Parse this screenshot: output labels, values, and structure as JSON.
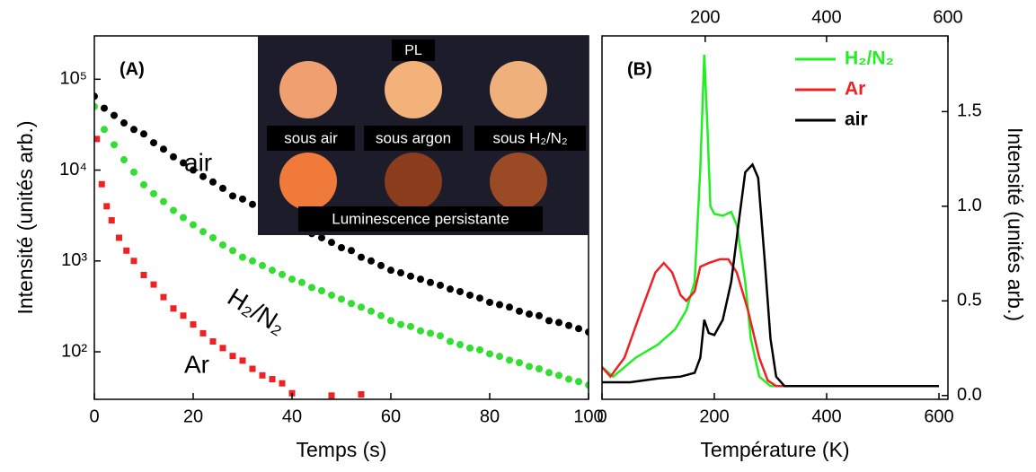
{
  "chart_data": [
    {
      "type": "scatter",
      "panel_label": "(A)",
      "xlabel": "Temps (s)",
      "ylabel": "Intensité (unités arb.)",
      "xlim": [
        0,
        100
      ],
      "xticks": [
        0,
        20,
        40,
        60,
        80,
        100
      ],
      "ylim": [
        30,
        300000
      ],
      "log_y": true,
      "yticks": [
        {
          "value": 100,
          "label": "10²"
        },
        {
          "value": 1000,
          "label": "10³"
        },
        {
          "value": 10000,
          "label": "10⁴"
        },
        {
          "value": 100000,
          "label": "10⁵"
        }
      ],
      "x": [
        0,
        2,
        4,
        6,
        8,
        10,
        12,
        14,
        16,
        18,
        20,
        22,
        24,
        26,
        28,
        30,
        32,
        34,
        36,
        38,
        40,
        42,
        44,
        46,
        48,
        50,
        52,
        54,
        56,
        58,
        60,
        62,
        64,
        66,
        68,
        70,
        72,
        74,
        76,
        78,
        80,
        82,
        84,
        86,
        88,
        90,
        92,
        94,
        96,
        98,
        100
      ],
      "series": [
        {
          "name": "air",
          "color": "#000000",
          "marker": "circle",
          "values": [
            65000,
            48000,
            40000,
            33000,
            28000,
            25000,
            20000,
            17000,
            14000,
            12000,
            10000,
            8500,
            7400,
            6300,
            5200,
            4800,
            4200,
            3600,
            3200,
            2800,
            2500,
            2200,
            2000,
            1800,
            1600,
            1400,
            1300,
            1100,
            1000,
            890,
            790,
            740,
            680,
            630,
            580,
            540,
            490,
            460,
            420,
            390,
            350,
            330,
            310,
            280,
            260,
            250,
            220,
            210,
            195,
            180,
            165
          ]
        },
        {
          "name": "H₂/N₂",
          "color": "#33dd33",
          "marker": "circle",
          "values": [
            50000,
            28000,
            19000,
            13000,
            9500,
            6900,
            5500,
            4500,
            3600,
            3000,
            2500,
            2100,
            1800,
            1500,
            1300,
            1100,
            1000,
            890,
            790,
            710,
            630,
            580,
            510,
            470,
            420,
            380,
            340,
            310,
            280,
            250,
            220,
            200,
            190,
            170,
            160,
            150,
            130,
            120,
            110,
            105,
            95,
            89,
            81,
            76,
            69,
            65,
            59,
            55,
            50,
            47,
            43
          ]
        },
        {
          "name": "Ar",
          "color": "#ee2222",
          "marker": "square",
          "x": [
            0.5,
            1.5,
            2.5,
            3.5,
            5,
            6.5,
            8,
            10,
            12,
            14,
            16,
            18,
            20,
            22,
            24,
            26,
            28,
            30,
            32,
            34,
            36,
            38,
            40,
            48,
            54
          ],
          "values": [
            22000,
            7000,
            4000,
            2800,
            1800,
            1300,
            1000,
            700,
            550,
            400,
            300,
            250,
            200,
            160,
            130,
            110,
            90,
            80,
            65,
            55,
            50,
            45,
            35,
            33,
            34
          ]
        }
      ],
      "inset": {
        "title": "PL",
        "labels": [
          "sous air",
          "sous argon",
          "sous H₂/N₂"
        ],
        "caption": "Luminescence persistante"
      }
    },
    {
      "type": "line",
      "panel_label": "(B)",
      "xlabel": "Température (K)",
      "ylabel": "Intensité (unités arb.)",
      "xlim": [
        0,
        616
      ],
      "xticks": [
        0,
        200,
        400,
        600
      ],
      "x2lim": [
        30,
        600
      ],
      "x2ticks": [
        200,
        400,
        600
      ],
      "ylim": [
        -0.02,
        1.9
      ],
      "yticks": [
        {
          "value": 0,
          "label": "0.0"
        },
        0.5,
        {
          "value": 1,
          "label": "1.0"
        },
        1.5
      ],
      "series": [
        {
          "name": "H₂/N₂",
          "color": "#22ee22",
          "x": [
            0,
            20,
            60,
            100,
            130,
            150,
            165,
            175,
            182,
            188,
            193,
            200,
            215,
            230,
            240,
            255,
            265,
            280,
            300,
            600
          ],
          "values": [
            0.15,
            0.1,
            0.2,
            0.27,
            0.35,
            0.45,
            0.6,
            1.2,
            1.8,
            1.4,
            1.0,
            0.96,
            0.95,
            0.97,
            0.9,
            0.6,
            0.3,
            0.1,
            0.05,
            0.05
          ]
        },
        {
          "name": "Ar",
          "color": "#ee2222",
          "x": [
            0,
            15,
            40,
            70,
            95,
            110,
            125,
            140,
            150,
            165,
            175,
            190,
            210,
            225,
            240,
            260,
            280,
            295,
            310,
            600
          ],
          "values": [
            0.15,
            0.1,
            0.2,
            0.45,
            0.65,
            0.7,
            0.65,
            0.53,
            0.5,
            0.55,
            0.68,
            0.7,
            0.72,
            0.72,
            0.65,
            0.45,
            0.2,
            0.08,
            0.05,
            0.05
          ]
        },
        {
          "name": "air",
          "color": "#000000",
          "x": [
            0,
            50,
            100,
            140,
            165,
            175,
            182,
            190,
            200,
            215,
            230,
            245,
            255,
            268,
            278,
            290,
            300,
            310,
            325,
            600
          ],
          "values": [
            0.07,
            0.07,
            0.09,
            0.1,
            0.12,
            0.2,
            0.4,
            0.33,
            0.32,
            0.4,
            0.6,
            0.95,
            1.18,
            1.22,
            1.15,
            0.7,
            0.3,
            0.1,
            0.05,
            0.05
          ]
        }
      ]
    }
  ]
}
